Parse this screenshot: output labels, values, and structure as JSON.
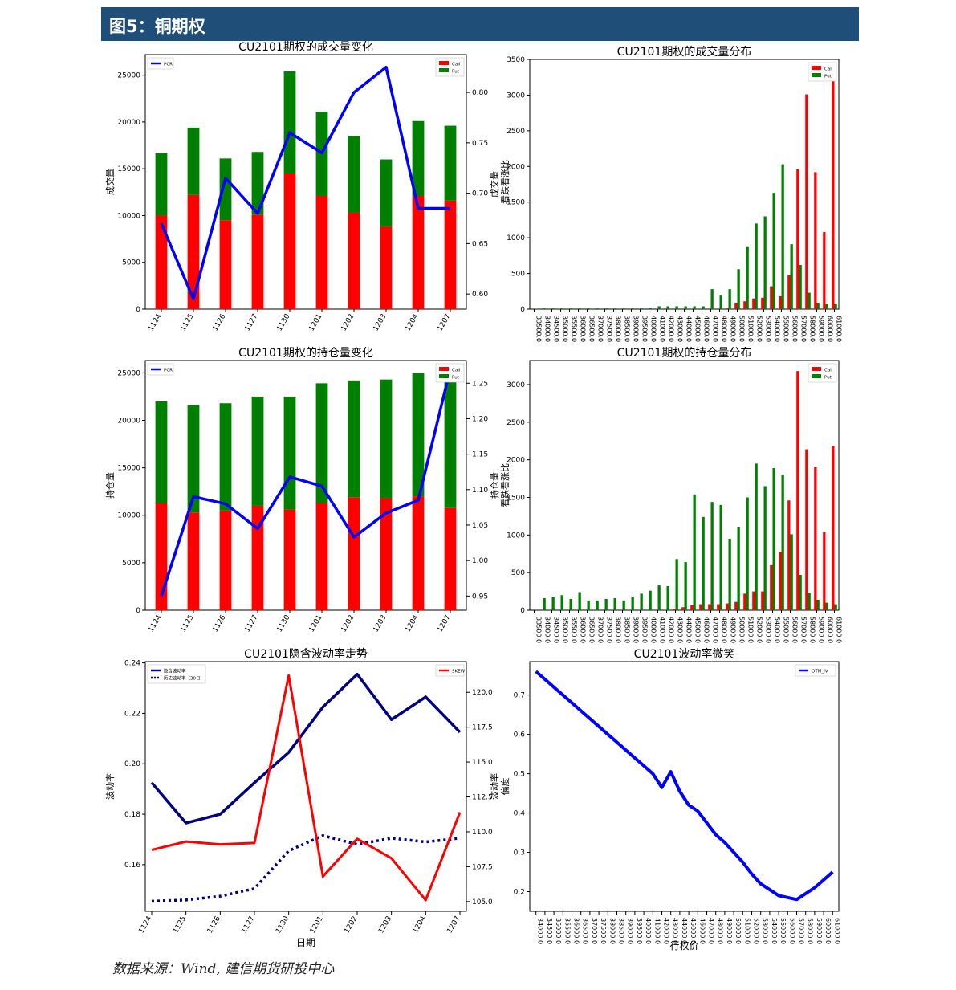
{
  "header": {
    "title": "图5：铜期权"
  },
  "footer": {
    "source": "数据来源：Wind, 建信期货研投中心"
  },
  "colors": {
    "call": "#ff0000",
    "put": "#008000",
    "pcr": "#0000ff",
    "iv": "#000080",
    "skew": "#ff0000",
    "smile": "#0000ff",
    "banner": "#1f4e79"
  },
  "chart_data": [
    {
      "id": "c1",
      "type": "bar",
      "title": "CU2101期权的成交量变化",
      "ylabel": "成交量",
      "y2label": "看跌看涨比",
      "categories": [
        "1124",
        "1125",
        "1126",
        "1127",
        "1130",
        "1201",
        "1202",
        "1203",
        "1204",
        "1207"
      ],
      "series": [
        {
          "name": "Call",
          "values": [
            10000,
            12200,
            9500,
            10100,
            14500,
            12100,
            10300,
            8800,
            12100,
            11600
          ]
        },
        {
          "name": "Put",
          "values": [
            6700,
            7200,
            6600,
            6700,
            10900,
            9000,
            8200,
            7200,
            8000,
            8000
          ]
        },
        {
          "name": "PCR",
          "axis": "right",
          "values": [
            0.67,
            0.595,
            0.715,
            0.68,
            0.76,
            0.74,
            0.8,
            0.825,
            0.685,
            0.685
          ]
        }
      ],
      "ylim": [
        0,
        27200
      ],
      "yticks": [
        0,
        5000,
        10000,
        15000,
        20000,
        25000
      ],
      "y2lim": [
        0.585,
        0.8375
      ],
      "y2ticks": [
        "0.60",
        "0.65",
        "0.70",
        "0.75",
        "0.80"
      ],
      "legend_left": [
        "PCR"
      ],
      "legend_right": [
        "Call",
        "Put"
      ]
    },
    {
      "id": "c2",
      "type": "bar",
      "title": "CU2101期权的成交量分布",
      "ylabel": "成交量",
      "categories": [
        "33500.0",
        "34000.0",
        "34500.0",
        "35000.0",
        "35500.0",
        "36000.0",
        "36500.0",
        "37000.0",
        "37500.0",
        "38000.0",
        "38500.0",
        "39000.0",
        "39500.0",
        "40000.0",
        "41000.0",
        "42000.0",
        "43000.0",
        "44000.0",
        "45000.0",
        "46000.0",
        "47000.0",
        "48000.0",
        "49000.0",
        "50000.0",
        "51000.0",
        "52000.0",
        "53000.0",
        "54000.0",
        "55000.0",
        "56000.0",
        "57000.0",
        "58000.0",
        "59000.0",
        "60000.0",
        "61000.0"
      ],
      "series": [
        {
          "name": "Call",
          "values": [
            0,
            0,
            0,
            0,
            0,
            0,
            0,
            0,
            0,
            0,
            0,
            0,
            0,
            0,
            0,
            0,
            0,
            0,
            0,
            0,
            0,
            0,
            10,
            90,
            110,
            150,
            160,
            320,
            180,
            480,
            1960,
            3010,
            1920,
            1080,
            3300
          ]
        },
        {
          "name": "Put",
          "values": [
            5,
            10,
            10,
            10,
            10,
            10,
            10,
            10,
            10,
            10,
            10,
            10,
            10,
            15,
            40,
            40,
            40,
            40,
            40,
            40,
            280,
            190,
            280,
            560,
            870,
            1200,
            1300,
            1630,
            2030,
            910,
            620,
            230,
            90,
            70,
            80
          ]
        }
      ],
      "ylim": [
        0,
        3500
      ],
      "yticks": [
        0,
        500,
        1000,
        1500,
        2000,
        2500,
        3000,
        3500
      ],
      "legend_right": [
        "Call",
        "Put"
      ]
    },
    {
      "id": "c3",
      "type": "bar",
      "title": "CU2101期权的持仓量变化",
      "ylabel": "持仓量",
      "y2label": "看跌看涨比",
      "categories": [
        "1124",
        "1125",
        "1126",
        "1127",
        "1130",
        "1201",
        "1202",
        "1203",
        "1204",
        "1207"
      ],
      "series": [
        {
          "name": "Call",
          "values": [
            11300,
            10300,
            10500,
            11000,
            10600,
            11300,
            11900,
            11800,
            12000,
            10800
          ]
        },
        {
          "name": "Put",
          "values": [
            10700,
            11300,
            11300,
            11500,
            11900,
            12600,
            12300,
            12500,
            13000,
            13700
          ]
        },
        {
          "name": "PCR",
          "axis": "right",
          "values": [
            0.95,
            1.09,
            1.08,
            1.045,
            1.118,
            1.105,
            1.033,
            1.067,
            1.085,
            1.27
          ]
        }
      ],
      "ylim": [
        0,
        26300
      ],
      "yticks": [
        0,
        5000,
        10000,
        15000,
        20000,
        25000
      ],
      "y2lim": [
        0.93,
        1.282
      ],
      "y2ticks": [
        "0.95",
        "1.00",
        "1.05",
        "1.10",
        "1.15",
        "1.20",
        "1.25"
      ],
      "legend_left": [
        "PCR"
      ],
      "legend_right": [
        "Call",
        "Put"
      ]
    },
    {
      "id": "c4",
      "type": "bar",
      "title": "CU2101期权的持仓量分布",
      "ylabel": "持仓量",
      "categories": [
        "33500.0",
        "34000.0",
        "34500.0",
        "35000.0",
        "35500.0",
        "36000.0",
        "36500.0",
        "37000.0",
        "37500.0",
        "38000.0",
        "38500.0",
        "39000.0",
        "39500.0",
        "40000.0",
        "41000.0",
        "42000.0",
        "43000.0",
        "44000.0",
        "45000.0",
        "46000.0",
        "47000.0",
        "48000.0",
        "49000.0",
        "50000.0",
        "51000.0",
        "52000.0",
        "53000.0",
        "54000.0",
        "55000.0",
        "56000.0",
        "57000.0",
        "58000.0",
        "59000.0",
        "60000.0",
        "61000.0"
      ],
      "series": [
        {
          "name": "Call",
          "values": [
            0,
            0,
            0,
            0,
            0,
            0,
            0,
            0,
            0,
            0,
            0,
            0,
            0,
            0,
            0,
            0,
            15,
            40,
            70,
            80,
            80,
            80,
            90,
            110,
            220,
            250,
            250,
            600,
            780,
            1460,
            3180,
            2140,
            1900,
            1040,
            2180
          ]
        },
        {
          "name": "Put",
          "values": [
            0,
            160,
            180,
            200,
            150,
            240,
            130,
            130,
            150,
            160,
            130,
            180,
            220,
            260,
            330,
            320,
            680,
            640,
            1540,
            1240,
            1440,
            1400,
            950,
            1110,
            1500,
            1950,
            1650,
            1890,
            1800,
            1010,
            470,
            230,
            140,
            100,
            80
          ]
        }
      ],
      "ylim": [
        0,
        3320
      ],
      "yticks": [
        0,
        500,
        1000,
        1500,
        2000,
        2500,
        3000
      ],
      "legend_right": [
        "Call",
        "Put"
      ]
    },
    {
      "id": "c5",
      "type": "line",
      "title": "CU2101隐含波动率走势",
      "xlabel": "日期",
      "ylabel": "波动率",
      "y2label": "偏度",
      "categories": [
        "1124",
        "1125",
        "1126",
        "1127",
        "1130",
        "1201",
        "1202",
        "1203",
        "1204",
        "1207"
      ],
      "series": [
        {
          "name": "隐含波动率",
          "style": "solid",
          "values": [
            0.1925,
            0.1765,
            0.18,
            0.1925,
            0.2045,
            0.2225,
            0.2355,
            0.2175,
            0.2265,
            0.2125
          ]
        },
        {
          "name": "历史波动率（30日）",
          "style": "dotted",
          "values": [
            0.1455,
            0.146,
            0.1475,
            0.1505,
            0.1655,
            0.1715,
            0.168,
            0.1705,
            0.169,
            0.1705
          ]
        },
        {
          "name": "SKEW",
          "axis": "right",
          "values": [
            108.7,
            109.3,
            109.1,
            109.2,
            121.2,
            106.8,
            109.5,
            108.1,
            105.1,
            111.4
          ]
        }
      ],
      "ylim": [
        0.1415,
        0.2405
      ],
      "yticks": [
        "0.16",
        "0.18",
        "0.20",
        "0.22",
        "0.24"
      ],
      "y2lim": [
        104.3,
        122.2
      ],
      "y2ticks": [
        "105.0",
        "107.5",
        "110.0",
        "112.5",
        "115.0",
        "117.5",
        "120.0"
      ],
      "legend_left": [
        "隐含波动率",
        "历史波动率（30日）"
      ],
      "legend_right": [
        "SKEW"
      ]
    },
    {
      "id": "c6",
      "type": "line",
      "title": "CU2101波动率微笑",
      "xlabel": "行权价",
      "ylabel": "波动率",
      "categories": [
        "34000.0",
        "34500.0",
        "35000.0",
        "35500.0",
        "36000.0",
        "36500.0",
        "37000.0",
        "37500.0",
        "38000.0",
        "38500.0",
        "39000.0",
        "39500.0",
        "40000.0",
        "41000.0",
        "42000.0",
        "43000.0",
        "44000.0",
        "45000.0",
        "46000.0",
        "47000.0",
        "48000.0",
        "49000.0",
        "50000.0",
        "51000.0",
        "52000.0",
        "53000.0",
        "54000.0",
        "55000.0",
        "56000.0",
        "57000.0",
        "58000.0",
        "59000.0",
        "60000.0",
        "61000.0"
      ],
      "series": [
        {
          "name": "OTM_IV",
          "values": [
            0.76,
            0.74,
            0.72,
            0.7,
            0.68,
            0.66,
            0.64,
            0.62,
            0.6,
            0.58,
            0.56,
            0.54,
            0.52,
            0.5,
            0.465,
            0.505,
            0.455,
            0.42,
            0.405,
            0.375,
            0.345,
            0.325,
            0.3,
            0.275,
            0.245,
            0.22,
            0.205,
            0.19,
            0.185,
            0.18,
            0.195,
            0.21,
            0.23,
            0.25
          ]
        }
      ],
      "ylim": [
        0.15,
        0.785
      ],
      "yticks": [
        "0.2",
        "0.3",
        "0.4",
        "0.5",
        "0.6",
        "0.7"
      ],
      "legend_right": [
        "OTM_IV"
      ]
    }
  ]
}
